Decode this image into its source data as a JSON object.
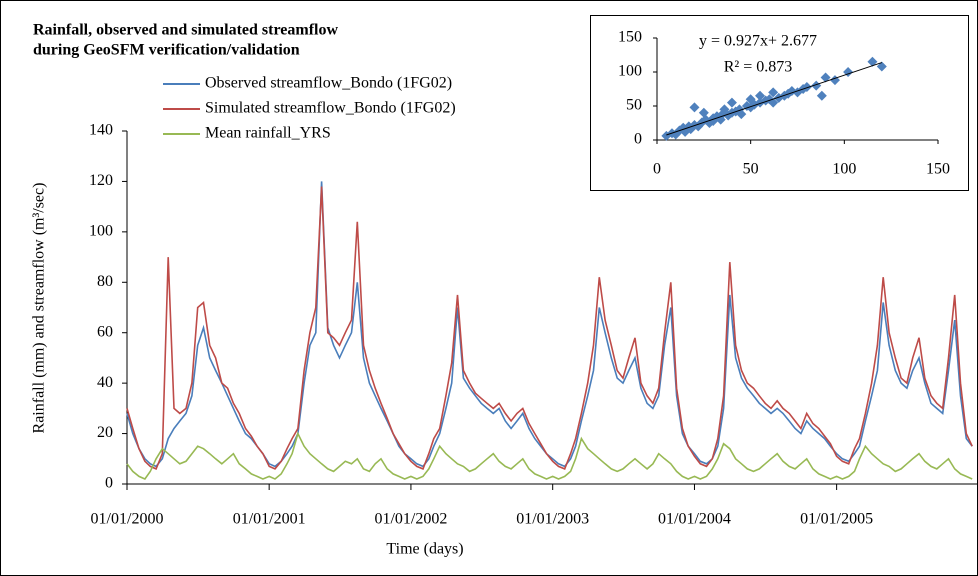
{
  "chart_data": [
    {
      "type": "line",
      "title": [
        "Rainfall, observed and simulated streamflow",
        "during GeoSFM verification/validation"
      ],
      "x_label": "Time (days)",
      "y_label": "Rainfall (mm) and streamflow (m³/sec)",
      "xlim": [
        "01/01/2000",
        "31/12/2005"
      ],
      "xticks": [
        "01/01/2000",
        "01/01/2001",
        "01/01/2002",
        "01/01/2003",
        "01/01/2004",
        "01/01/2005"
      ],
      "ylim": [
        0,
        140
      ],
      "yticks": [
        0,
        20,
        40,
        60,
        80,
        100,
        120,
        140
      ],
      "x": [
        "01/01/2000",
        "16/01/2000",
        "01/02/2000",
        "16/02/2000",
        "01/03/2000",
        "16/03/2000",
        "01/04/2000",
        "16/04/2000",
        "01/05/2000",
        "16/05/2000",
        "01/06/2000",
        "16/06/2000",
        "01/07/2000",
        "16/07/2000",
        "01/08/2000",
        "16/08/2000",
        "01/09/2000",
        "16/09/2000",
        "01/10/2000",
        "16/10/2000",
        "01/11/2000",
        "16/11/2000",
        "01/12/2000",
        "16/12/2000",
        "01/01/2001",
        "16/01/2001",
        "01/02/2001",
        "16/02/2001",
        "01/03/2001",
        "16/03/2001",
        "01/04/2001",
        "16/04/2001",
        "01/05/2001",
        "16/05/2001",
        "01/06/2001",
        "16/06/2001",
        "01/07/2001",
        "16/07/2001",
        "01/08/2001",
        "16/08/2001",
        "01/09/2001",
        "16/09/2001",
        "01/10/2001",
        "16/10/2001",
        "01/11/2001",
        "16/11/2001",
        "01/12/2001",
        "16/12/2001",
        "01/01/2002",
        "16/01/2002",
        "01/02/2002",
        "16/02/2002",
        "01/03/2002",
        "16/03/2002",
        "01/04/2002",
        "16/04/2002",
        "01/05/2002",
        "16/05/2002",
        "01/06/2002",
        "16/06/2002",
        "01/07/2002",
        "16/07/2002",
        "01/08/2002",
        "16/08/2002",
        "01/09/2002",
        "16/09/2002",
        "01/10/2002",
        "16/10/2002",
        "01/11/2002",
        "16/11/2002",
        "01/12/2002",
        "16/12/2002",
        "01/01/2003",
        "16/01/2003",
        "01/02/2003",
        "16/02/2003",
        "01/03/2003",
        "16/03/2003",
        "01/04/2003",
        "16/04/2003",
        "01/05/2003",
        "16/05/2003",
        "01/06/2003",
        "16/06/2003",
        "01/07/2003",
        "16/07/2003",
        "01/08/2003",
        "16/08/2003",
        "01/09/2003",
        "16/09/2003",
        "01/10/2003",
        "16/10/2003",
        "01/11/2003",
        "16/11/2003",
        "01/12/2003",
        "16/12/2003",
        "01/01/2004",
        "16/01/2004",
        "01/02/2004",
        "16/02/2004",
        "01/03/2004",
        "16/03/2004",
        "01/04/2004",
        "16/04/2004",
        "01/05/2004",
        "16/05/2004",
        "01/06/2004",
        "16/06/2004",
        "01/07/2004",
        "16/07/2004",
        "01/08/2004",
        "16/08/2004",
        "01/09/2004",
        "16/09/2004",
        "01/10/2004",
        "16/10/2004",
        "01/11/2004",
        "16/11/2004",
        "01/12/2004",
        "16/12/2004",
        "01/01/2005",
        "16/01/2005",
        "01/02/2005",
        "16/02/2005",
        "01/03/2005",
        "16/03/2005",
        "01/04/2005",
        "16/04/2005",
        "01/05/2005",
        "16/05/2005",
        "01/06/2005",
        "16/06/2005",
        "01/07/2005",
        "16/07/2005",
        "01/08/2005",
        "16/08/2005",
        "01/09/2005",
        "16/09/2005",
        "01/10/2005",
        "16/10/2005",
        "01/11/2005",
        "16/11/2005",
        "01/12/2005",
        "16/12/2005"
      ],
      "series": [
        {
          "name": "Observed streamflow_Bondo (1FG02)",
          "color": "#4a7ebb",
          "values": [
            28,
            20,
            14,
            10,
            8,
            7,
            10,
            18,
            22,
            25,
            28,
            35,
            55,
            62,
            50,
            45,
            40,
            35,
            30,
            25,
            20,
            18,
            15,
            12,
            8,
            7,
            9,
            12,
            15,
            20,
            40,
            55,
            60,
            120,
            62,
            55,
            50,
            55,
            60,
            80,
            50,
            40,
            35,
            30,
            25,
            20,
            15,
            12,
            10,
            8,
            7,
            10,
            15,
            20,
            30,
            40,
            70,
            42,
            38,
            35,
            32,
            30,
            28,
            30,
            25,
            22,
            25,
            28,
            22,
            18,
            15,
            12,
            10,
            8,
            7,
            10,
            15,
            25,
            35,
            45,
            70,
            60,
            50,
            42,
            40,
            45,
            50,
            38,
            32,
            30,
            35,
            55,
            70,
            35,
            20,
            15,
            12,
            9,
            8,
            10,
            15,
            30,
            75,
            50,
            42,
            38,
            35,
            32,
            30,
            28,
            30,
            28,
            25,
            22,
            20,
            25,
            22,
            20,
            18,
            15,
            12,
            10,
            9,
            12,
            15,
            25,
            35,
            45,
            72,
            55,
            45,
            40,
            38,
            45,
            50,
            40,
            32,
            30,
            28,
            45,
            65,
            35,
            18,
            15
          ]
        },
        {
          "name": "Simulated streamflow_Bondo (1FG02)",
          "color": "#be4b48",
          "values": [
            30,
            22,
            14,
            9,
            7,
            6,
            12,
            90,
            30,
            28,
            30,
            40,
            70,
            72,
            55,
            50,
            40,
            38,
            32,
            28,
            22,
            19,
            15,
            12,
            7,
            6,
            9,
            14,
            18,
            22,
            45,
            60,
            70,
            118,
            60,
            58,
            55,
            60,
            65,
            104,
            55,
            45,
            38,
            32,
            26,
            20,
            16,
            12,
            9,
            7,
            6,
            12,
            18,
            22,
            35,
            48,
            75,
            45,
            40,
            36,
            34,
            32,
            30,
            32,
            28,
            25,
            28,
            30,
            24,
            20,
            16,
            12,
            9,
            7,
            6,
            12,
            18,
            28,
            40,
            55,
            82,
            65,
            55,
            45,
            42,
            50,
            58,
            40,
            35,
            32,
            38,
            60,
            80,
            38,
            22,
            15,
            11,
            8,
            7,
            10,
            18,
            35,
            88,
            55,
            45,
            40,
            38,
            35,
            32,
            30,
            33,
            30,
            28,
            25,
            22,
            28,
            24,
            22,
            19,
            16,
            11,
            9,
            8,
            14,
            18,
            28,
            40,
            55,
            82,
            60,
            50,
            42,
            40,
            50,
            58,
            42,
            35,
            32,
            30,
            50,
            75,
            40,
            20,
            15
          ]
        },
        {
          "name": "Mean rainfall_YRS",
          "color": "#98b954",
          "values": [
            8,
            5,
            3,
            2,
            5,
            10,
            14,
            12,
            10,
            8,
            9,
            12,
            15,
            14,
            12,
            10,
            8,
            10,
            12,
            8,
            6,
            4,
            3,
            2,
            3,
            2,
            4,
            8,
            12,
            20,
            15,
            12,
            10,
            8,
            6,
            5,
            7,
            9,
            8,
            10,
            6,
            5,
            8,
            10,
            6,
            4,
            3,
            2,
            3,
            2,
            3,
            6,
            10,
            15,
            12,
            10,
            8,
            7,
            5,
            6,
            8,
            10,
            12,
            9,
            7,
            6,
            8,
            10,
            6,
            4,
            3,
            2,
            3,
            2,
            3,
            5,
            10,
            18,
            14,
            12,
            10,
            8,
            6,
            5,
            6,
            8,
            10,
            8,
            6,
            8,
            12,
            10,
            8,
            5,
            3,
            2,
            3,
            2,
            3,
            6,
            10,
            16,
            14,
            10,
            8,
            6,
            5,
            6,
            8,
            10,
            12,
            9,
            7,
            6,
            8,
            10,
            6,
            4,
            3,
            2,
            3,
            2,
            3,
            5,
            10,
            15,
            12,
            10,
            8,
            7,
            5,
            6,
            8,
            10,
            12,
            9,
            7,
            6,
            8,
            10,
            6,
            4,
            3,
            2
          ]
        }
      ]
    },
    {
      "type": "scatter",
      "color": "#4f81bd",
      "annotations": [
        "y = 0.927x+ 2.677",
        "R² = 0.873"
      ],
      "trendline": {
        "slope": 0.927,
        "intercept": 2.677
      },
      "xlim": [
        0,
        150
      ],
      "xticks": [
        0,
        50,
        100,
        150
      ],
      "ylim": [
        0,
        150
      ],
      "yticks": [
        0,
        50,
        100,
        150
      ],
      "x": [
        5,
        8,
        10,
        12,
        14,
        15,
        17,
        18,
        20,
        20,
        22,
        24,
        25,
        26,
        28,
        30,
        30,
        32,
        34,
        35,
        36,
        38,
        40,
        40,
        42,
        44,
        45,
        48,
        50,
        50,
        52,
        55,
        55,
        58,
        60,
        62,
        62,
        65,
        68,
        70,
        72,
        75,
        78,
        80,
        85,
        88,
        90,
        95,
        102,
        115,
        120
      ],
      "y": [
        6,
        10,
        8,
        14,
        18,
        12,
        20,
        16,
        22,
        48,
        20,
        26,
        40,
        30,
        25,
        32,
        28,
        35,
        30,
        38,
        45,
        36,
        40,
        55,
        42,
        45,
        38,
        50,
        48,
        60,
        52,
        55,
        65,
        58,
        60,
        55,
        70,
        62,
        65,
        68,
        72,
        70,
        75,
        78,
        80,
        65,
        92,
        88,
        100,
        115,
        108
      ]
    }
  ]
}
